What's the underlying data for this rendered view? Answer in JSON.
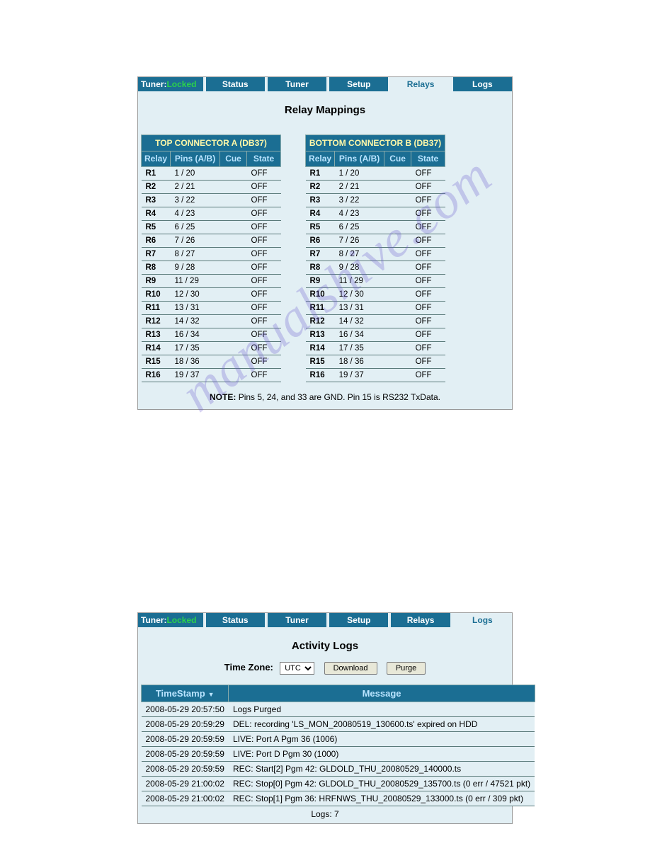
{
  "watermark_text": "manualshive.com",
  "colors": {
    "nav_bg": "#1b6e93",
    "panel_bg": "#e2eff4",
    "header_text": "#b9e4ff",
    "conn_hdr_text": "#fff8a8",
    "tuner_locked": "#2bd24a"
  },
  "panel1": {
    "nav": {
      "tuner_label": "Tuner:",
      "tuner_status": "Locked",
      "tabs": [
        "Status",
        "Tuner",
        "Setup",
        "Relays",
        "Logs"
      ],
      "active_tab": "Relays"
    },
    "title": "Relay Mappings",
    "left": {
      "header": "TOP CONNECTOR A (DB37)",
      "cols": [
        "Relay",
        "Pins (A/B)",
        "Cue",
        "State"
      ],
      "rows": [
        {
          "r": "R1",
          "p": "1 / 20",
          "c": "",
          "s": "OFF"
        },
        {
          "r": "R2",
          "p": "2 / 21",
          "c": "",
          "s": "OFF"
        },
        {
          "r": "R3",
          "p": "3 / 22",
          "c": "",
          "s": "OFF"
        },
        {
          "r": "R4",
          "p": "4 / 23",
          "c": "",
          "s": "OFF"
        },
        {
          "r": "R5",
          "p": "6 / 25",
          "c": "",
          "s": "OFF"
        },
        {
          "r": "R6",
          "p": "7 / 26",
          "c": "",
          "s": "OFF"
        },
        {
          "r": "R7",
          "p": "8 / 27",
          "c": "",
          "s": "OFF"
        },
        {
          "r": "R8",
          "p": "9 / 28",
          "c": "",
          "s": "OFF"
        },
        {
          "r": "R9",
          "p": "11 / 29",
          "c": "",
          "s": "OFF"
        },
        {
          "r": "R10",
          "p": "12 / 30",
          "c": "",
          "s": "OFF"
        },
        {
          "r": "R11",
          "p": "13 / 31",
          "c": "",
          "s": "OFF"
        },
        {
          "r": "R12",
          "p": "14 / 32",
          "c": "",
          "s": "OFF"
        },
        {
          "r": "R13",
          "p": "16 / 34",
          "c": "",
          "s": "OFF"
        },
        {
          "r": "R14",
          "p": "17 / 35",
          "c": "",
          "s": "OFF"
        },
        {
          "r": "R15",
          "p": "18 / 36",
          "c": "",
          "s": "OFF"
        },
        {
          "r": "R16",
          "p": "19 / 37",
          "c": "",
          "s": "OFF"
        }
      ]
    },
    "right": {
      "header": "BOTTOM CONNECTOR B (DB37)",
      "cols": [
        "Relay",
        "Pins (A/B)",
        "Cue",
        "State"
      ],
      "rows": [
        {
          "r": "R1",
          "p": "1 / 20",
          "c": "",
          "s": "OFF"
        },
        {
          "r": "R2",
          "p": "2 / 21",
          "c": "",
          "s": "OFF"
        },
        {
          "r": "R3",
          "p": "3 / 22",
          "c": "",
          "s": "OFF"
        },
        {
          "r": "R4",
          "p": "4 / 23",
          "c": "",
          "s": "OFF"
        },
        {
          "r": "R5",
          "p": "6 / 25",
          "c": "",
          "s": "OFF"
        },
        {
          "r": "R6",
          "p": "7 / 26",
          "c": "",
          "s": "OFF"
        },
        {
          "r": "R7",
          "p": "8 / 27",
          "c": "",
          "s": "OFF"
        },
        {
          "r": "R8",
          "p": "9 / 28",
          "c": "",
          "s": "OFF"
        },
        {
          "r": "R9",
          "p": "11 / 29",
          "c": "",
          "s": "OFF"
        },
        {
          "r": "R10",
          "p": "12 / 30",
          "c": "",
          "s": "OFF"
        },
        {
          "r": "R11",
          "p": "13 / 31",
          "c": "",
          "s": "OFF"
        },
        {
          "r": "R12",
          "p": "14 / 32",
          "c": "",
          "s": "OFF"
        },
        {
          "r": "R13",
          "p": "16 / 34",
          "c": "",
          "s": "OFF"
        },
        {
          "r": "R14",
          "p": "17 / 35",
          "c": "",
          "s": "OFF"
        },
        {
          "r": "R15",
          "p": "18 / 36",
          "c": "",
          "s": "OFF"
        },
        {
          "r": "R16",
          "p": "19 / 37",
          "c": "",
          "s": "OFF"
        }
      ]
    },
    "note_bold": "NOTE:",
    "note_text": " Pins 5, 24, and 33 are GND. Pin 15 is RS232 TxData."
  },
  "panel2": {
    "nav": {
      "tuner_label": "Tuner:",
      "tuner_status": "Locked",
      "tabs": [
        "Status",
        "Tuner",
        "Setup",
        "Relays",
        "Logs"
      ],
      "active_tab": "Logs"
    },
    "title": "Activity Logs",
    "tz_label": "Time Zone:",
    "tz_value": "UTC",
    "btn_download": "Download",
    "btn_purge": "Purge",
    "cols": [
      "TimeStamp",
      "Message"
    ],
    "sort_indicator": "▼",
    "rows": [
      {
        "t": "2008-05-29  20:57:50",
        "m": "Logs Purged"
      },
      {
        "t": "2008-05-29  20:59:29",
        "m": "DEL: recording 'LS_MON_20080519_130600.ts' expired on HDD"
      },
      {
        "t": "2008-05-29  20:59:59",
        "m": "LIVE: Port A Pgm 36 (1006)"
      },
      {
        "t": "2008-05-29  20:59:59",
        "m": "LIVE: Port D Pgm 30 (1000)"
      },
      {
        "t": "2008-05-29  20:59:59",
        "m": "REC: Start[2] Pgm 42: GLDOLD_THU_20080529_140000.ts"
      },
      {
        "t": "2008-05-29  21:00:02",
        "m": "REC: Stop[0] Pgm 42: GLDOLD_THU_20080529_135700.ts (0 err / 47521 pkt)"
      },
      {
        "t": "2008-05-29  21:00:02",
        "m": "REC: Stop[1] Pgm 36: HRFNWS_THU_20080529_133000.ts (0 err / 309 pkt)"
      }
    ],
    "count_label": "Logs: 7"
  }
}
